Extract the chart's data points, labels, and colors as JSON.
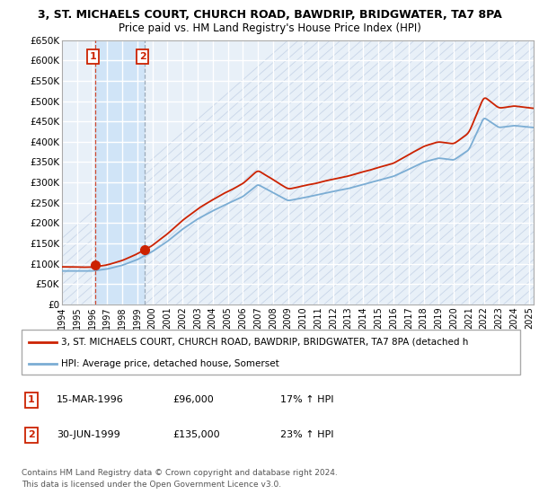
{
  "title": "3, ST. MICHAELS COURT, CHURCH ROAD, BAWDRIP, BRIDGWATER, TA7 8PA",
  "subtitle": "Price paid vs. HM Land Registry's House Price Index (HPI)",
  "title_fontsize": 9.0,
  "subtitle_fontsize": 8.5,
  "ylim": [
    0,
    650000
  ],
  "ytick_vals": [
    0,
    50000,
    100000,
    150000,
    200000,
    250000,
    300000,
    350000,
    400000,
    450000,
    500000,
    550000,
    600000,
    650000
  ],
  "ytick_labels": [
    "£0",
    "£50K",
    "£100K",
    "£150K",
    "£200K",
    "£250K",
    "£300K",
    "£350K",
    "£400K",
    "£450K",
    "£500K",
    "£550K",
    "£600K",
    "£650K"
  ],
  "xlim": [
    1994.0,
    2025.3
  ],
  "plot_bg_color": "#e8f0f8",
  "highlight_color": "#d0e4f7",
  "grid_color": "#ffffff",
  "diag_color": "#c8d5e8",
  "sale1_x": 1996.21,
  "sale1_y": 96000,
  "sale1_label": "1",
  "sale1_date": "15-MAR-1996",
  "sale1_price": "£96,000",
  "sale1_hpi_text": "17% ↑ HPI",
  "sale2_x": 1999.5,
  "sale2_y": 135000,
  "sale2_label": "2",
  "sale2_date": "30-JUN-1999",
  "sale2_price": "£135,000",
  "sale2_hpi_text": "23% ↑ HPI",
  "hpi_color": "#7badd4",
  "price_color": "#cc2200",
  "legend_price": "3, ST. MICHAELS COURT, CHURCH ROAD, BAWDRIP, BRIDGWATER, TA7 8PA (detached h",
  "legend_hpi": "HPI: Average price, detached house, Somerset",
  "footer1": "Contains HM Land Registry data © Crown copyright and database right 2024.",
  "footer2": "This data is licensed under the Open Government Licence v3.0.",
  "bg_color": "#ffffff"
}
